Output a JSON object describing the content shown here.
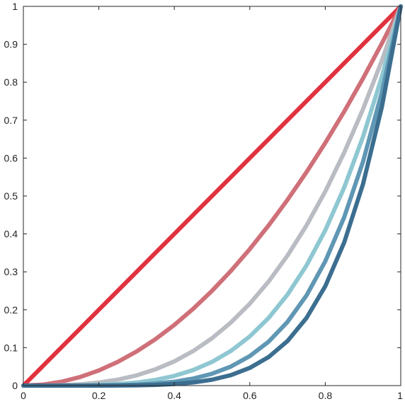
{
  "chart_data": {
    "type": "line",
    "title": "",
    "xlabel": "",
    "ylabel": "",
    "xlim": [
      0,
      1
    ],
    "ylim": [
      0,
      1
    ],
    "grid": false,
    "legend": "none",
    "x_ticks": [
      {
        "value": 0,
        "label": "0"
      },
      {
        "value": 0.2,
        "label": "0.2"
      },
      {
        "value": 0.4,
        "label": "0.4"
      },
      {
        "value": 0.6,
        "label": "0.6"
      },
      {
        "value": 0.8,
        "label": "0.8"
      },
      {
        "value": 1,
        "label": "1"
      }
    ],
    "y_ticks": [
      {
        "value": 0,
        "label": "0"
      },
      {
        "value": 0.1,
        "label": "0.1"
      },
      {
        "value": 0.2,
        "label": "0.2"
      },
      {
        "value": 0.3,
        "label": "0.3"
      },
      {
        "value": 0.4,
        "label": "0.4"
      },
      {
        "value": 0.5,
        "label": "0.5"
      },
      {
        "value": 0.6,
        "label": "0.6"
      },
      {
        "value": 0.7,
        "label": "0.7"
      },
      {
        "value": 0.8,
        "label": "0.8"
      },
      {
        "value": 0.9,
        "label": "0.9"
      },
      {
        "value": 1,
        "label": "1"
      }
    ],
    "x": [
      0,
      0.05,
      0.1,
      0.15,
      0.2,
      0.25,
      0.3,
      0.35,
      0.4,
      0.45,
      0.5,
      0.55,
      0.6,
      0.65,
      0.7,
      0.75,
      0.8,
      0.85,
      0.9,
      0.95,
      1
    ],
    "series": [
      {
        "color": "#e0323f",
        "values": [
          0,
          0.05,
          0.1,
          0.15,
          0.2,
          0.25,
          0.3,
          0.35,
          0.4,
          0.45,
          0.5,
          0.55,
          0.6,
          0.65,
          0.7,
          0.75,
          0.8,
          0.85,
          0.9,
          0.95,
          1
        ]
      },
      {
        "color": "#cf7079",
        "values": [
          0,
          0.0025,
          0.01,
          0.0225,
          0.04,
          0.0625,
          0.09,
          0.1225,
          0.16,
          0.2025,
          0.25,
          0.3025,
          0.36,
          0.4225,
          0.49,
          0.5625,
          0.64,
          0.7225,
          0.81,
          0.9025,
          1
        ]
      },
      {
        "color": "#b9bcc3",
        "values": [
          0,
          0.0001,
          0.001,
          0.0034,
          0.008,
          0.0156,
          0.027,
          0.0429,
          0.064,
          0.0911,
          0.125,
          0.1664,
          0.216,
          0.2746,
          0.343,
          0.4219,
          0.512,
          0.6141,
          0.729,
          0.8574,
          1
        ]
      },
      {
        "color": "#8ec7d2",
        "values": [
          0,
          0,
          0.0001,
          0.0005,
          0.0016,
          0.0039,
          0.0081,
          0.015,
          0.0256,
          0.041,
          0.0625,
          0.0915,
          0.1296,
          0.1785,
          0.2401,
          0.3164,
          0.4096,
          0.522,
          0.6561,
          0.8145,
          1
        ]
      },
      {
        "color": "#5f97b4",
        "values": [
          0,
          0,
          0,
          0.0001,
          0.0003,
          0.001,
          0.0024,
          0.0053,
          0.0102,
          0.0185,
          0.0313,
          0.0503,
          0.0778,
          0.116,
          0.1681,
          0.2373,
          0.3277,
          0.4437,
          0.5905,
          0.7738,
          1
        ]
      },
      {
        "color": "#3c6e90",
        "values": [
          0,
          0,
          0,
          0,
          0.0001,
          0.0002,
          0.0007,
          0.0018,
          0.0041,
          0.0083,
          0.0156,
          0.0277,
          0.0467,
          0.0754,
          0.1176,
          0.178,
          0.2621,
          0.3771,
          0.5314,
          0.7351,
          1
        ]
      }
    ]
  }
}
